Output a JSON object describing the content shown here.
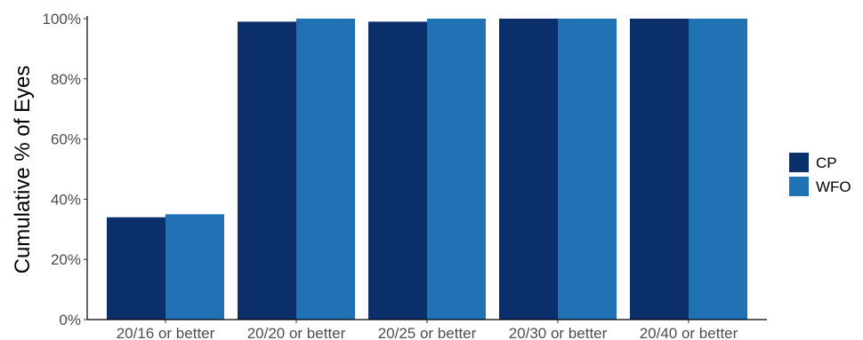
{
  "chart_data": {
    "type": "bar",
    "title": "",
    "xlabel": "",
    "ylabel": "Cumulative % of Eyes",
    "categories": [
      "20/16 or better",
      "20/20 or better",
      "20/25 or better",
      "20/30 or better",
      "20/40 or better"
    ],
    "series": [
      {
        "name": "CP",
        "color": "#0b2f6b",
        "values": [
          34,
          99,
          99,
          100,
          100
        ]
      },
      {
        "name": "WFO",
        "color": "#2171b5",
        "values": [
          35,
          100,
          100,
          100,
          100
        ]
      }
    ],
    "ylim": [
      0,
      100
    ],
    "y_ticks": [
      0,
      20,
      40,
      60,
      80,
      100
    ],
    "y_tick_labels": [
      "0%",
      "20%",
      "40%",
      "60%",
      "80%",
      "100%"
    ],
    "grid": false,
    "legend_position": "right"
  }
}
